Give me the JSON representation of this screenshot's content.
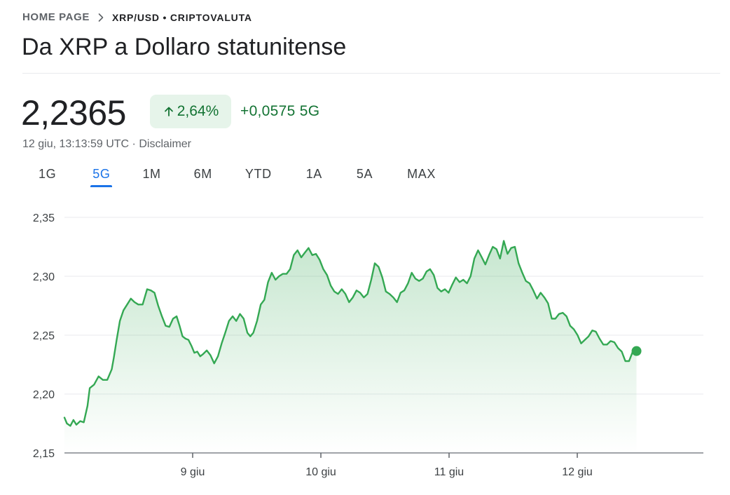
{
  "breadcrumb": {
    "home": "HOME PAGE",
    "current": "XRP/USD • CRIPTOVALUTA"
  },
  "title": "Da XRP a Dollaro statunitense",
  "quote": {
    "price": "2,2365",
    "change_pct": "2,64%",
    "change_abs": "+0,0575",
    "change_period": "5G",
    "timestamp": "12 giu, 13:13:59 UTC",
    "separator": "·",
    "disclaimer": "Disclaimer"
  },
  "tabs": [
    {
      "label": "1G",
      "active": false
    },
    {
      "label": "5G",
      "active": true
    },
    {
      "label": "1M",
      "active": false
    },
    {
      "label": "6M",
      "active": false
    },
    {
      "label": "YTD",
      "active": false
    },
    {
      "label": "1A",
      "active": false
    },
    {
      "label": "5A",
      "active": false
    },
    {
      "label": "MAX",
      "active": false
    }
  ],
  "colors": {
    "positive": "#137333",
    "positive_bg": "#e6f4ea",
    "line": "#34a853",
    "active_tab": "#1a73e8"
  },
  "icons": {
    "breadcrumb_separator": "chevron-right-icon",
    "change_arrow": "arrow-up-icon"
  },
  "chart_data": {
    "type": "line",
    "ylim": [
      2.15,
      2.35
    ],
    "yticks": [
      "2,35",
      "2,30",
      "2,25",
      "2,20",
      "2,15"
    ],
    "ytick_values": [
      2.35,
      2.3,
      2.25,
      2.2,
      2.15
    ],
    "xlim": [
      0,
      5
    ],
    "xticks": [
      "9 giu",
      "10 giu",
      "11 giu",
      "12 giu"
    ],
    "xtick_values": [
      1,
      2,
      3,
      4
    ],
    "grid": true,
    "series": [
      {
        "values": [
          [
            0.0,
            2.18
          ],
          [
            0.019,
            2.175
          ],
          [
            0.046,
            2.173
          ],
          [
            0.07,
            2.178
          ],
          [
            0.093,
            2.174
          ],
          [
            0.123,
            2.177
          ],
          [
            0.151,
            2.176
          ],
          [
            0.18,
            2.19
          ],
          [
            0.197,
            2.205
          ],
          [
            0.231,
            2.208
          ],
          [
            0.266,
            2.215
          ],
          [
            0.3,
            2.212
          ],
          [
            0.334,
            2.212
          ],
          [
            0.369,
            2.221
          ],
          [
            0.385,
            2.231
          ],
          [
            0.407,
            2.246
          ],
          [
            0.432,
            2.262
          ],
          [
            0.46,
            2.271
          ],
          [
            0.489,
            2.276
          ],
          [
            0.518,
            2.281
          ],
          [
            0.547,
            2.278
          ],
          [
            0.576,
            2.276
          ],
          [
            0.61,
            2.276
          ],
          [
            0.645,
            2.289
          ],
          [
            0.674,
            2.288
          ],
          [
            0.702,
            2.286
          ],
          [
            0.731,
            2.275
          ],
          [
            0.76,
            2.266
          ],
          [
            0.789,
            2.258
          ],
          [
            0.818,
            2.257
          ],
          [
            0.847,
            2.264
          ],
          [
            0.875,
            2.266
          ],
          [
            0.898,
            2.258
          ],
          [
            0.921,
            2.249
          ],
          [
            0.944,
            2.247
          ],
          [
            0.967,
            2.246
          ],
          [
            0.99,
            2.241
          ],
          [
            1.013,
            2.235
          ],
          [
            1.036,
            2.236
          ],
          [
            1.059,
            2.232
          ],
          [
            1.082,
            2.234
          ],
          [
            1.11,
            2.237
          ],
          [
            1.139,
            2.233
          ],
          [
            1.168,
            2.226
          ],
          [
            1.197,
            2.232
          ],
          [
            1.226,
            2.243
          ],
          [
            1.254,
            2.252
          ],
          [
            1.283,
            2.262
          ],
          [
            1.312,
            2.266
          ],
          [
            1.34,
            2.262
          ],
          [
            1.369,
            2.268
          ],
          [
            1.398,
            2.264
          ],
          [
            1.427,
            2.252
          ],
          [
            1.45,
            2.249
          ],
          [
            1.473,
            2.252
          ],
          [
            1.502,
            2.262
          ],
          [
            1.531,
            2.276
          ],
          [
            1.559,
            2.28
          ],
          [
            1.588,
            2.295
          ],
          [
            1.617,
            2.303
          ],
          [
            1.646,
            2.297
          ],
          [
            1.674,
            2.3
          ],
          [
            1.703,
            2.302
          ],
          [
            1.732,
            2.302
          ],
          [
            1.76,
            2.306
          ],
          [
            1.789,
            2.318
          ],
          [
            1.818,
            2.322
          ],
          [
            1.847,
            2.316
          ],
          [
            1.875,
            2.32
          ],
          [
            1.904,
            2.324
          ],
          [
            1.933,
            2.318
          ],
          [
            1.962,
            2.319
          ],
          [
            1.99,
            2.314
          ],
          [
            2.019,
            2.306
          ],
          [
            2.048,
            2.301
          ],
          [
            2.077,
            2.292
          ],
          [
            2.105,
            2.287
          ],
          [
            2.134,
            2.285
          ],
          [
            2.163,
            2.289
          ],
          [
            2.191,
            2.285
          ],
          [
            2.22,
            2.278
          ],
          [
            2.249,
            2.282
          ],
          [
            2.278,
            2.288
          ],
          [
            2.306,
            2.286
          ],
          [
            2.335,
            2.282
          ],
          [
            2.364,
            2.285
          ],
          [
            2.393,
            2.297
          ],
          [
            2.421,
            2.311
          ],
          [
            2.45,
            2.308
          ],
          [
            2.479,
            2.299
          ],
          [
            2.507,
            2.287
          ],
          [
            2.536,
            2.285
          ],
          [
            2.565,
            2.282
          ],
          [
            2.594,
            2.278
          ],
          [
            2.622,
            2.286
          ],
          [
            2.651,
            2.288
          ],
          [
            2.68,
            2.294
          ],
          [
            2.709,
            2.303
          ],
          [
            2.737,
            2.298
          ],
          [
            2.766,
            2.296
          ],
          [
            2.795,
            2.298
          ],
          [
            2.824,
            2.304
          ],
          [
            2.852,
            2.306
          ],
          [
            2.881,
            2.301
          ],
          [
            2.91,
            2.29
          ],
          [
            2.938,
            2.287
          ],
          [
            2.967,
            2.289
          ],
          [
            2.996,
            2.286
          ],
          [
            3.025,
            2.293
          ],
          [
            3.053,
            2.299
          ],
          [
            3.082,
            2.295
          ],
          [
            3.111,
            2.297
          ],
          [
            3.14,
            2.294
          ],
          [
            3.168,
            2.3
          ],
          [
            3.197,
            2.315
          ],
          [
            3.226,
            2.322
          ],
          [
            3.255,
            2.316
          ],
          [
            3.283,
            2.31
          ],
          [
            3.312,
            2.318
          ],
          [
            3.341,
            2.325
          ],
          [
            3.37,
            2.323
          ],
          [
            3.398,
            2.315
          ],
          [
            3.427,
            2.33
          ],
          [
            3.456,
            2.319
          ],
          [
            3.484,
            2.324
          ],
          [
            3.513,
            2.325
          ],
          [
            3.542,
            2.311
          ],
          [
            3.571,
            2.303
          ],
          [
            3.599,
            2.296
          ],
          [
            3.628,
            2.294
          ],
          [
            3.657,
            2.288
          ],
          [
            3.686,
            2.281
          ],
          [
            3.714,
            2.286
          ],
          [
            3.743,
            2.282
          ],
          [
            3.772,
            2.277
          ],
          [
            3.801,
            2.264
          ],
          [
            3.829,
            2.264
          ],
          [
            3.858,
            2.268
          ],
          [
            3.887,
            2.269
          ],
          [
            3.916,
            2.266
          ],
          [
            3.944,
            2.258
          ],
          [
            3.973,
            2.255
          ],
          [
            4.002,
            2.25
          ],
          [
            4.03,
            2.243
          ],
          [
            4.059,
            2.246
          ],
          [
            4.088,
            2.249
          ],
          [
            4.117,
            2.254
          ],
          [
            4.145,
            2.253
          ],
          [
            4.174,
            2.247
          ],
          [
            4.203,
            2.242
          ],
          [
            4.232,
            2.242
          ],
          [
            4.26,
            2.245
          ],
          [
            4.289,
            2.244
          ],
          [
            4.318,
            2.239
          ],
          [
            4.347,
            2.236
          ],
          [
            4.375,
            2.228
          ],
          [
            4.404,
            2.228
          ],
          [
            4.433,
            2.236
          ],
          [
            4.462,
            2.236
          ]
        ]
      }
    ],
    "last_value": 2.2365
  }
}
